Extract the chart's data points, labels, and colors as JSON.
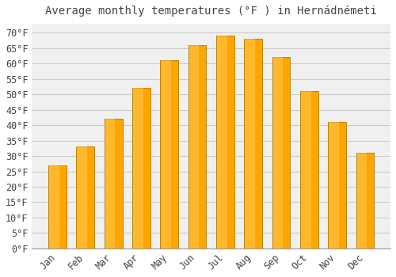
{
  "title": "Average monthly temperatures (°F ) in Hernádnémeti",
  "months": [
    "Jan",
    "Feb",
    "Mar",
    "Apr",
    "May",
    "Jun",
    "Jul",
    "Aug",
    "Sep",
    "Oct",
    "Nov",
    "Dec"
  ],
  "values": [
    27,
    33,
    42,
    52,
    61,
    66,
    69,
    68,
    62,
    51,
    41,
    31
  ],
  "bar_color": "#FFA500",
  "bar_edge_color": "#B8860B",
  "background_color": "#FFFFFF",
  "plot_bg_color": "#F0F0F0",
  "grid_color": "#CCCCCC",
  "text_color": "#444444",
  "yticks": [
    0,
    5,
    10,
    15,
    20,
    25,
    30,
    35,
    40,
    45,
    50,
    55,
    60,
    65,
    70
  ],
  "ylim": [
    0,
    73
  ],
  "title_fontsize": 10,
  "tick_fontsize": 8.5
}
